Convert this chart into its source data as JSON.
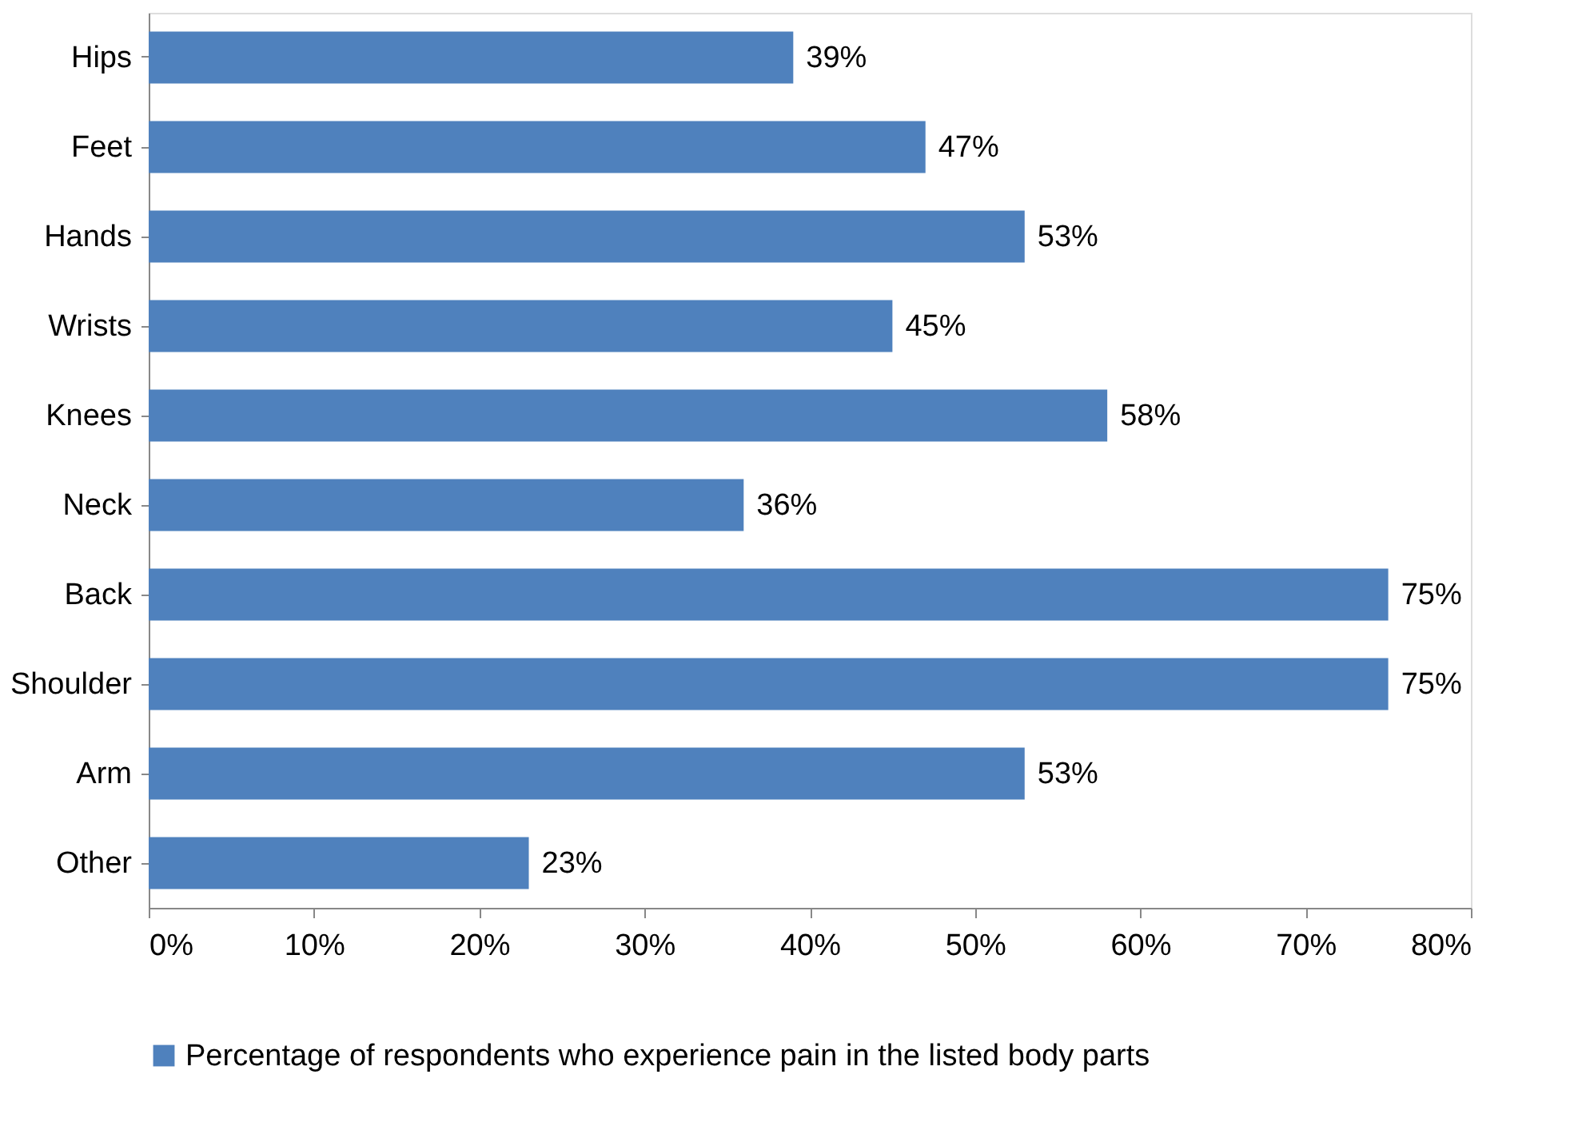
{
  "chart_data": {
    "type": "bar",
    "orientation": "horizontal",
    "categories": [
      "Hips",
      "Feet",
      "Hands",
      "Wrists",
      "Knees",
      "Neck",
      "Back",
      "Shoulder",
      "Arm",
      "Other"
    ],
    "series": [
      {
        "name": "Percentage of respondents who experience pain in the listed body parts",
        "color": "#4f81bd",
        "values": [
          39,
          47,
          53,
          45,
          58,
          36,
          75,
          75,
          53,
          23
        ],
        "value_labels": [
          "39%",
          "47%",
          "53%",
          "45%",
          "58%",
          "36%",
          "75%",
          "75%",
          "53%",
          "23%"
        ]
      }
    ],
    "xlim": [
      0,
      80
    ],
    "xticks": [
      {
        "value": 0,
        "label": "0%"
      },
      {
        "value": 10,
        "label": "10%"
      },
      {
        "value": 20,
        "label": "20%"
      },
      {
        "value": 30,
        "label": "30%"
      },
      {
        "value": 40,
        "label": "40%"
      },
      {
        "value": 50,
        "label": "50%"
      },
      {
        "value": 60,
        "label": "60%"
      },
      {
        "value": 70,
        "label": "70%"
      },
      {
        "value": 80,
        "label": "80%"
      }
    ],
    "grid": false,
    "legend": "bottom"
  }
}
